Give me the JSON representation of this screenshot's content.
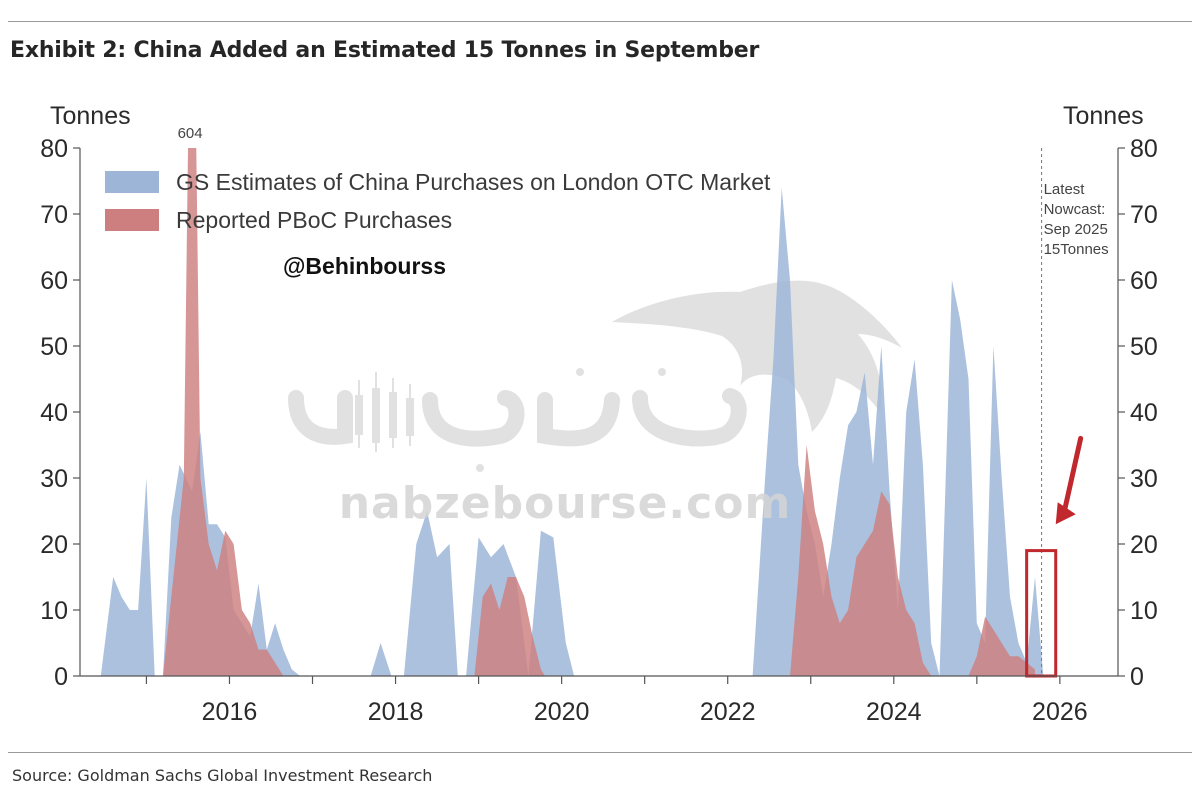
{
  "header": {
    "title": "Exhibit 2: China Added an Estimated 15 Tonnes in September"
  },
  "footer": {
    "source": "Source: Goldman Sachs Global Investment Research"
  },
  "watermark": {
    "handle": "@Behinbourss",
    "site": "nabzebourse.com"
  },
  "chart_data": {
    "type": "area",
    "title": "Exhibit 2: China Added an Estimated 15 Tonnes in September",
    "ylabel": "Tonnes",
    "ylabel_right": "Tonnes",
    "ylim": [
      0,
      80
    ],
    "xlim": [
      2014.2,
      2026.7
    ],
    "x_ticks": [
      "2016",
      "2018",
      "2020",
      "2022",
      "2024",
      "2026"
    ],
    "y_ticks": [
      "0",
      "10",
      "20",
      "30",
      "40",
      "50",
      "60",
      "70",
      "80"
    ],
    "legend_position": "top-left",
    "grid": false,
    "colors": {
      "gs": "#9db6d8",
      "pboc": "#cd7f7f",
      "highlight": "#c0282d",
      "arrow": "#c0282d"
    },
    "series": [
      {
        "name": "GS Estimates of China Purchases on London OTC Market",
        "x": [
          2014.45,
          2014.6,
          2014.7,
          2014.8,
          2014.9,
          2015.0,
          2015.1,
          2015.2,
          2015.3,
          2015.4,
          2015.55,
          2015.65,
          2015.75,
          2015.85,
          2015.95,
          2016.05,
          2016.15,
          2016.25,
          2016.35,
          2016.45,
          2016.55,
          2016.65,
          2016.75,
          2016.85,
          2016.95,
          2017.7,
          2017.82,
          2017.95,
          2018.1,
          2018.25,
          2018.38,
          2018.5,
          2018.65,
          2018.75,
          2018.85,
          2019.0,
          2019.15,
          2019.3,
          2019.45,
          2019.6,
          2019.75,
          2019.9,
          2020.05,
          2020.15,
          2022.3,
          2022.45,
          2022.55,
          2022.65,
          2022.75,
          2022.85,
          2022.95,
          2023.05,
          2023.15,
          2023.25,
          2023.35,
          2023.45,
          2023.55,
          2023.65,
          2023.75,
          2023.85,
          2023.95,
          2024.05,
          2024.15,
          2024.25,
          2024.35,
          2024.45,
          2024.55,
          2024.7,
          2024.8,
          2024.9,
          2025.0,
          2025.1,
          2025.2,
          2025.3,
          2025.4,
          2025.5,
          2025.6,
          2025.7,
          2025.8
        ],
        "values": [
          0,
          15,
          12,
          10,
          10,
          30,
          0,
          0,
          24,
          32,
          28,
          37,
          23,
          23,
          21,
          10,
          8,
          6,
          14,
          4,
          8,
          4,
          1,
          0,
          0,
          0,
          5,
          0,
          0,
          20,
          25,
          18,
          20,
          0,
          0,
          21,
          18,
          20,
          15,
          0,
          22,
          21,
          5,
          0,
          0,
          30,
          48,
          74,
          60,
          32,
          25,
          20,
          12,
          20,
          30,
          38,
          40,
          46,
          32,
          50,
          28,
          10,
          40,
          48,
          32,
          5,
          0,
          60,
          54,
          45,
          8,
          5,
          50,
          30,
          12,
          5,
          2,
          15,
          0
        ]
      },
      {
        "name": "Reported PBoC Purchases",
        "x": [
          2015.2,
          2015.45,
          2015.5,
          2015.55,
          2015.6,
          2015.65,
          2015.75,
          2015.85,
          2015.95,
          2016.05,
          2016.15,
          2016.25,
          2016.35,
          2016.45,
          2016.55,
          2016.65,
          2016.75,
          2016.85,
          2016.95,
          2018.95,
          2019.05,
          2019.15,
          2019.25,
          2019.35,
          2019.45,
          2019.55,
          2019.65,
          2019.75,
          2019.8,
          2022.75,
          2022.85,
          2022.95,
          2023.05,
          2023.15,
          2023.25,
          2023.35,
          2023.45,
          2023.55,
          2023.65,
          2023.75,
          2023.85,
          2023.95,
          2024.05,
          2024.15,
          2024.25,
          2024.35,
          2024.45,
          2024.9,
          2025.0,
          2025.1,
          2025.2,
          2025.3,
          2025.4,
          2025.5,
          2025.6,
          2025.7
        ],
        "values": [
          0,
          30,
          80,
          80,
          80,
          30,
          20,
          16,
          22,
          20,
          10,
          8,
          4,
          4,
          2,
          0,
          0,
          0,
          0,
          0,
          12,
          14,
          10,
          15,
          15,
          12,
          6,
          1,
          0,
          0,
          15,
          35,
          25,
          20,
          12,
          8,
          10,
          18,
          20,
          22,
          28,
          26,
          15,
          10,
          8,
          2,
          0,
          0,
          3,
          9,
          7,
          5,
          3,
          3,
          2,
          1
        ]
      }
    ],
    "annotations": [
      {
        "text": "604",
        "x": 2015.55,
        "y": 80,
        "type": "overflow-label"
      },
      {
        "lines": [
          "Latest",
          "Nowcast:",
          "Sep 2025",
          "15Tonnes"
        ],
        "x": 2025.78,
        "type": "vertical-line"
      },
      {
        "x": 2025.6,
        "x2": 2025.95,
        "y": 0,
        "y2": 19,
        "type": "highlight-box"
      },
      {
        "type": "arrow",
        "x": 2026.25,
        "y": 36,
        "x2": 2025.95,
        "y2": 23
      }
    ]
  }
}
